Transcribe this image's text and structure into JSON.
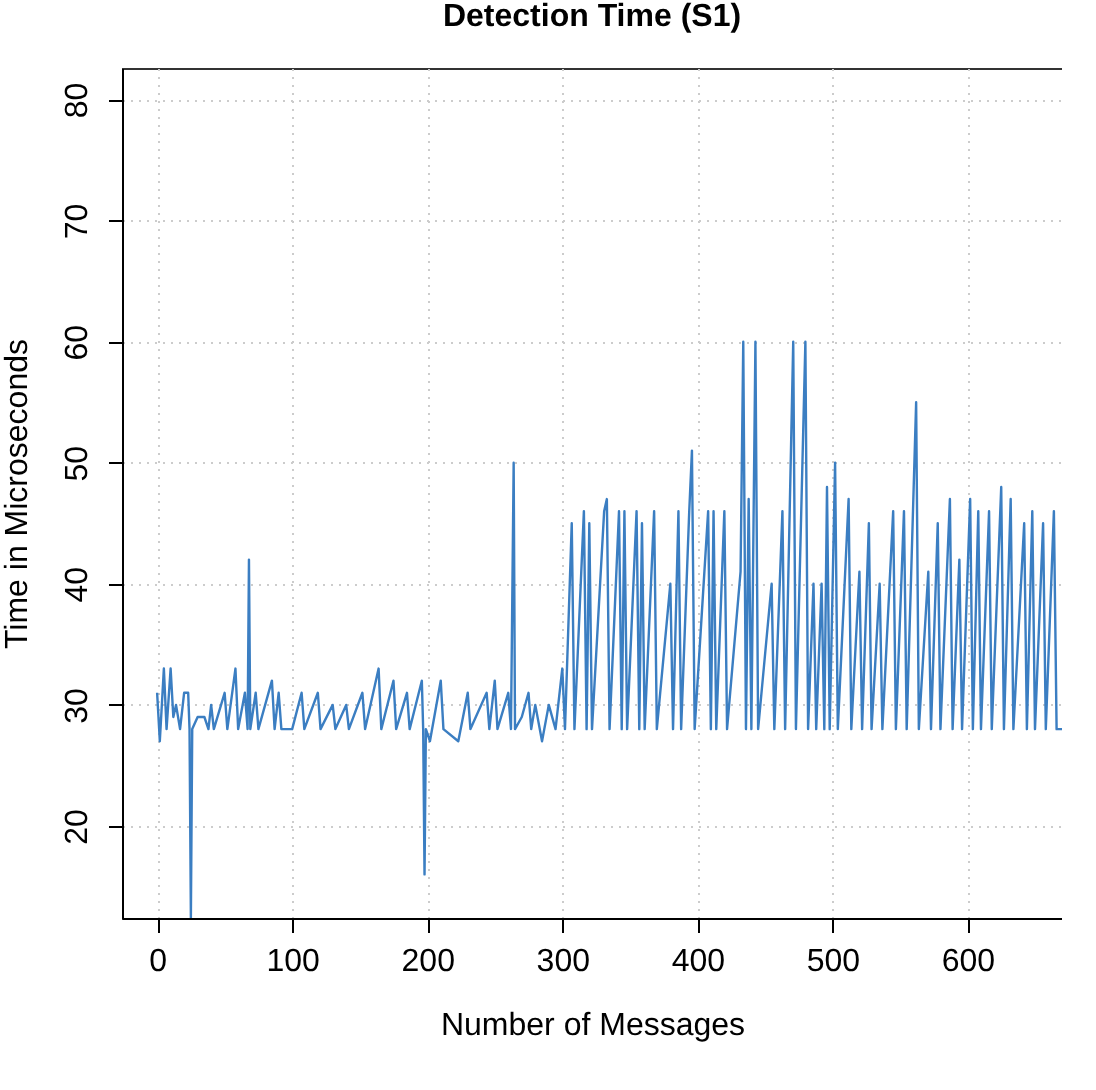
{
  "chart_data": {
    "type": "line",
    "title": "Detection Time (S1)",
    "xlabel": "Number of Messages",
    "ylabel": "Time in Microseconds",
    "x": [
      0,
      2,
      5,
      7,
      10,
      12,
      14,
      17,
      20,
      23,
      24,
      25,
      26,
      30,
      35,
      38,
      40,
      42,
      50,
      52,
      58,
      60,
      65,
      67,
      68,
      69,
      73,
      75,
      85,
      87,
      90,
      92,
      100,
      107,
      109,
      119,
      121,
      130,
      132,
      140,
      142,
      152,
      154,
      164,
      166,
      175,
      177,
      185,
      187,
      196,
      197,
      198,
      199,
      202,
      210,
      212,
      223,
      230,
      232,
      244,
      246,
      250,
      252,
      260,
      262,
      264,
      265,
      270,
      275,
      277,
      280,
      285,
      290,
      295,
      300,
      302,
      307,
      309,
      316,
      318,
      320,
      322,
      331,
      333,
      335,
      342,
      344,
      346,
      348,
      355,
      357,
      359,
      361,
      368,
      370,
      380,
      382,
      386,
      388,
      394,
      396,
      398,
      408,
      410,
      412,
      414,
      420,
      422,
      432,
      434,
      436,
      438,
      440,
      443,
      445,
      455,
      457,
      463,
      465,
      471,
      473,
      480,
      482,
      486,
      488,
      492,
      494,
      496,
      498,
      502,
      504,
      512,
      514,
      520,
      522,
      527,
      529,
      535,
      537,
      545,
      547,
      553,
      555,
      562,
      564,
      571,
      573,
      578,
      580,
      587,
      589,
      594,
      596,
      602,
      604,
      608,
      610,
      616,
      618,
      625,
      627,
      632,
      634,
      642,
      644,
      648,
      650,
      656,
      658,
      664,
      666,
      670
    ],
    "series": [
      {
        "color": "#3b7ec2",
        "values": [
          31,
          27,
          33,
          28,
          33,
          29,
          30,
          28,
          31,
          31,
          28,
          12.4,
          28,
          29,
          29,
          28,
          30,
          28,
          31,
          28,
          33,
          28,
          31,
          28,
          42,
          28,
          31,
          28,
          32,
          28,
          31,
          28,
          28,
          31,
          28,
          31,
          28,
          30,
          28,
          30,
          28,
          31,
          28,
          33,
          28,
          32,
          28,
          31,
          28,
          32,
          28,
          16,
          28,
          27,
          32,
          28,
          27,
          31,
          28,
          31,
          28,
          32,
          28,
          31,
          28,
          50,
          28,
          29,
          31,
          28,
          30,
          27,
          30,
          28,
          33,
          28,
          45,
          28,
          46,
          28,
          45,
          28,
          46,
          47,
          28,
          46,
          28,
          46,
          28,
          46,
          28,
          45,
          28,
          46,
          28,
          40,
          28,
          46,
          28,
          46,
          51,
          28,
          46,
          28,
          46,
          28,
          46,
          28,
          41,
          60,
          28,
          47,
          28,
          60,
          28,
          40,
          28,
          46,
          28,
          60,
          28,
          60,
          28,
          40,
          28,
          40,
          28,
          48,
          28,
          50,
          28,
          47,
          28,
          41,
          28,
          45,
          28,
          40,
          28,
          46,
          28,
          46,
          28,
          55,
          28,
          41,
          28,
          45,
          28,
          47,
          28,
          42,
          28,
          47,
          28,
          46,
          28,
          46,
          28,
          48,
          28,
          47,
          28,
          45,
          28,
          46,
          28,
          45,
          28,
          46,
          28,
          28
        ]
      }
    ],
    "xlim": [
      -26,
      670
    ],
    "ylim": [
      12.4,
      82.6
    ],
    "xticks": [
      0,
      100,
      200,
      300,
      400,
      500,
      600
    ],
    "yticks": [
      20,
      30,
      40,
      50,
      60,
      70,
      80
    ],
    "grid": true,
    "line_style": "solid"
  }
}
